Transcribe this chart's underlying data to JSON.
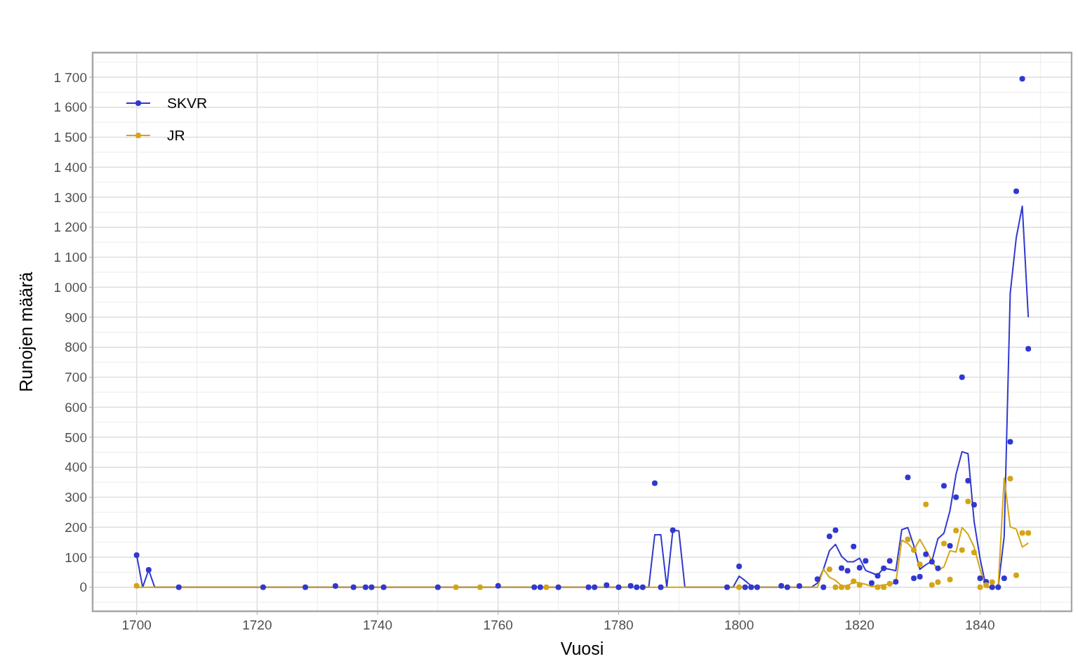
{
  "chart_data": {
    "type": "scatter",
    "xlabel": "Vuosi",
    "ylabel": "Runojen määrä",
    "xlim": [
      1692.7,
      1855.2
    ],
    "ylim": [
      -80,
      1782
    ],
    "xticks": [
      1700,
      {
        "value": 1710,
        "label": null
      },
      1720,
      {
        "value": 1730,
        "label": null
      },
      1740,
      {
        "value": 1750,
        "label": null
      },
      1760,
      {
        "value": 1770,
        "label": null
      },
      1780,
      {
        "value": 1790,
        "label": null
      },
      1800,
      {
        "value": 1810,
        "label": null
      },
      1820,
      {
        "value": 1830,
        "label": null
      },
      1840,
      {
        "value": 1850,
        "label": null
      }
    ],
    "yticks": [
      {
        "value": -50,
        "label": null
      },
      {
        "value": 0,
        "label": "0"
      },
      {
        "value": 50,
        "label": null
      },
      {
        "value": 100,
        "label": "100"
      },
      {
        "value": 150,
        "label": null
      },
      {
        "value": 200,
        "label": "200"
      },
      {
        "value": 250,
        "label": null
      },
      {
        "value": 300,
        "label": "300"
      },
      {
        "value": 350,
        "label": null
      },
      {
        "value": 400,
        "label": "400"
      },
      {
        "value": 450,
        "label": null
      },
      {
        "value": 500,
        "label": "500"
      },
      {
        "value": 550,
        "label": null
      },
      {
        "value": 600,
        "label": "600"
      },
      {
        "value": 650,
        "label": null
      },
      {
        "value": 700,
        "label": "700"
      },
      {
        "value": 750,
        "label": null
      },
      {
        "value": 800,
        "label": "800"
      },
      {
        "value": 850,
        "label": null
      },
      {
        "value": 900,
        "label": "900"
      },
      {
        "value": 950,
        "label": null
      },
      {
        "value": 1000,
        "label": "1 000"
      },
      {
        "value": 1050,
        "label": null
      },
      {
        "value": 1100,
        "label": "1 100"
      },
      {
        "value": 1150,
        "label": null
      },
      {
        "value": 1200,
        "label": "1 200"
      },
      {
        "value": 1250,
        "label": null
      },
      {
        "value": 1300,
        "label": "1 300"
      },
      {
        "value": 1350,
        "label": null
      },
      {
        "value": 1400,
        "label": "1 400"
      },
      {
        "value": 1450,
        "label": null
      },
      {
        "value": 1500,
        "label": "1 500"
      },
      {
        "value": 1550,
        "label": null
      },
      {
        "value": 1600,
        "label": "1 600"
      },
      {
        "value": 1650,
        "label": null
      },
      {
        "value": 1700,
        "label": "1 700"
      },
      {
        "value": 1750,
        "label": null
      }
    ],
    "grid": true,
    "legend": "top left",
    "marker": "circle",
    "series": [
      {
        "type": "line",
        "marker": "none",
        "color": "#3038d0",
        "x": [
          1700,
          1701,
          1702,
          1703,
          1785,
          1786,
          1787,
          1788,
          1789,
          1790,
          1791,
          1799,
          1800,
          1801,
          1802,
          1803,
          1812,
          1813,
          1814,
          1815,
          1816,
          1817,
          1818,
          1819,
          1820,
          1821,
          1822,
          1823,
          1824,
          1825,
          1826,
          1827,
          1828,
          1829,
          1830,
          1831,
          1832,
          1833,
          1834,
          1835,
          1836,
          1837,
          1838,
          1839,
          1840,
          1841,
          1842,
          1843,
          1844,
          1845,
          1846,
          1847,
          1848
        ],
        "values": [
          108,
          0,
          58,
          0,
          0,
          175,
          175,
          0,
          190,
          188,
          0,
          0,
          37,
          22,
          5,
          0,
          0,
          14,
          60,
          122,
          143,
          103,
          85,
          85,
          97,
          56,
          48,
          40,
          64,
          60,
          55,
          192,
          199,
          138,
          60,
          75,
          87,
          162,
          180,
          255,
          376,
          452,
          445,
          220,
          95,
          0,
          0,
          0,
          170,
          980,
          1165,
          1270,
          900
        ]
      },
      {
        "type": "line",
        "marker": "none",
        "color": "#d4a514",
        "x": [
          1700,
          1813,
          1814,
          1815,
          1816,
          1817,
          1818,
          1819,
          1820,
          1821,
          1822,
          1826,
          1827,
          1828,
          1829,
          1830,
          1831,
          1832,
          1833,
          1834,
          1835,
          1836,
          1837,
          1838,
          1839,
          1840,
          1841,
          1843,
          1844,
          1845,
          1846,
          1847,
          1848
        ],
        "values": [
          0,
          0,
          60,
          33,
          23,
          5,
          5,
          17,
          14,
          10,
          2,
          14,
          157,
          146,
          124,
          160,
          124,
          88,
          56,
          68,
          122,
          117,
          199,
          177,
          134,
          60,
          0,
          0,
          364,
          201,
          194,
          134,
          147
        ]
      },
      {
        "name": "SKVR",
        "color": "#3038d0",
        "x": [
          1700,
          1702,
          1707,
          1721,
          1728,
          1733,
          1736,
          1738,
          1739,
          1741,
          1750,
          1760,
          1766,
          1767,
          1770,
          1775,
          1776,
          1778,
          1780,
          1782,
          1783,
          1784,
          1786,
          1787,
          1789,
          1798,
          1800,
          1801,
          1802,
          1803,
          1807,
          1808,
          1810,
          1813,
          1814,
          1815,
          1816,
          1817,
          1818,
          1819,
          1820,
          1821,
          1822,
          1823,
          1824,
          1825,
          1826,
          1828,
          1829,
          1830,
          1831,
          1832,
          1833,
          1834,
          1835,
          1836,
          1837,
          1838,
          1839,
          1840,
          1841,
          1842,
          1843,
          1844,
          1845,
          1846,
          1847,
          1848
        ],
        "values": [
          107,
          58,
          0,
          0,
          0,
          4,
          0,
          0,
          0,
          0,
          0,
          5,
          0,
          0,
          0,
          0,
          0,
          7,
          0,
          5,
          0,
          0,
          347,
          0,
          190,
          0,
          70,
          0,
          0,
          0,
          5,
          0,
          4,
          27,
          0,
          170,
          190,
          64,
          55,
          136,
          65,
          88,
          14,
          38,
          63,
          88,
          18,
          366,
          30,
          35,
          110,
          85,
          63,
          338,
          138,
          300,
          700,
          355,
          275,
          30,
          18,
          0,
          0,
          30,
          485,
          1320,
          1695,
          795
        ]
      },
      {
        "name": "JR",
        "color": "#d4a514",
        "x": [
          1700,
          1753,
          1757,
          1768,
          1800,
          1815,
          1816,
          1817,
          1818,
          1819,
          1820,
          1823,
          1824,
          1825,
          1828,
          1829,
          1830,
          1831,
          1832,
          1833,
          1834,
          1835,
          1836,
          1837,
          1838,
          1839,
          1840,
          1841,
          1842,
          1845,
          1846,
          1847,
          1848
        ],
        "values": [
          5,
          0,
          0,
          0,
          0,
          60,
          0,
          0,
          0,
          20,
          8,
          0,
          0,
          12,
          160,
          124,
          76,
          276,
          8,
          17,
          146,
          26,
          189,
          124,
          286,
          116,
          0,
          7,
          17,
          362,
          40,
          181,
          181
        ]
      }
    ]
  }
}
